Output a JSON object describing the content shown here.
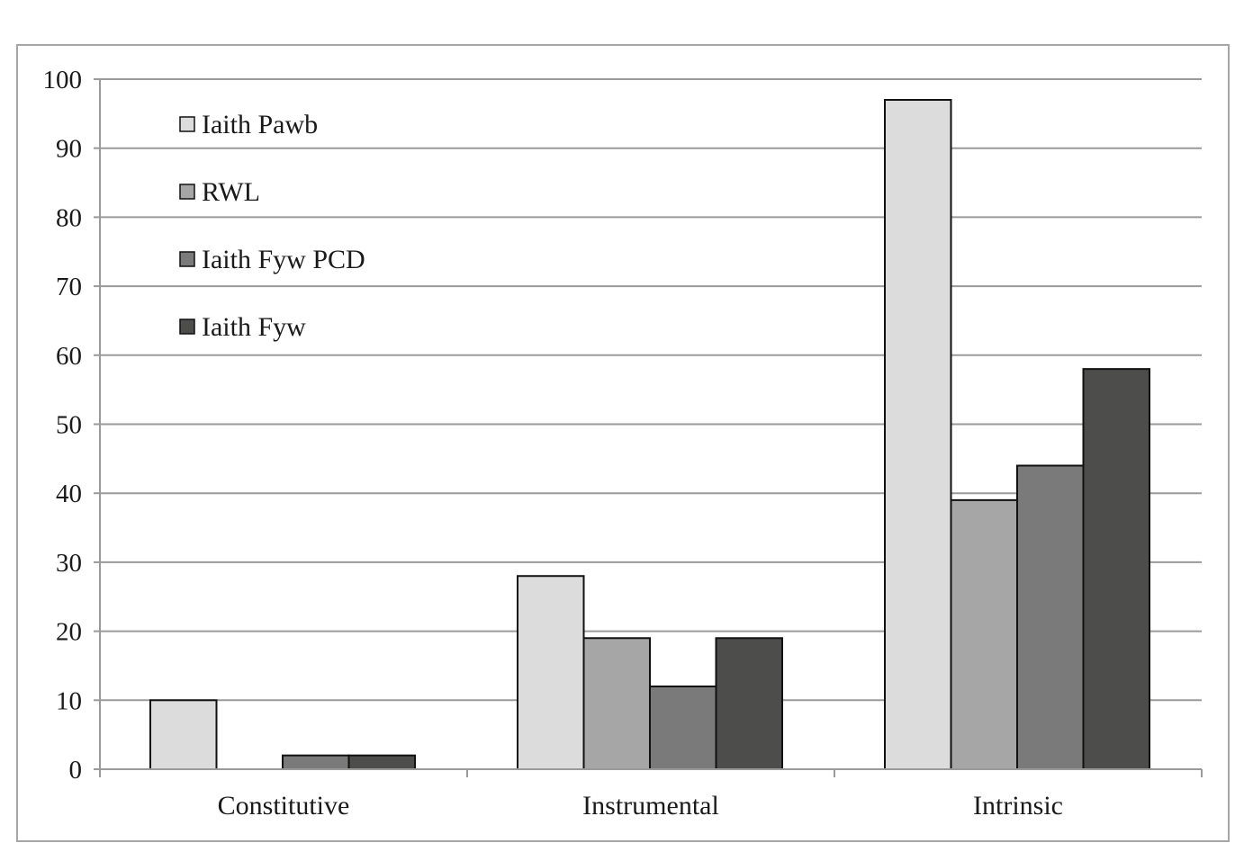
{
  "chart_data": {
    "type": "bar",
    "categories": [
      "Constitutive",
      "Instrumental",
      "Intrinsic"
    ],
    "series": [
      {
        "name": "Iaith Pawb",
        "values": [
          10,
          28,
          97
        ],
        "color": "#dcdcdc"
      },
      {
        "name": "RWL",
        "values": [
          0,
          19,
          39
        ],
        "color": "#a6a6a6"
      },
      {
        "name": "Iaith Fyw PCD",
        "values": [
          2,
          12,
          44
        ],
        "color": "#7a7a7a"
      },
      {
        "name": "Iaith Fyw",
        "values": [
          2,
          19,
          58
        ],
        "color": "#4d4d4b"
      }
    ],
    "yticks": [
      "0",
      "10",
      "20",
      "30",
      "40",
      "50",
      "60",
      "70",
      "80",
      "90",
      "100"
    ],
    "ylim": [
      0,
      100
    ],
    "title": "",
    "xlabel": "",
    "ylabel": "",
    "grid": true,
    "legend_position": "top-left"
  }
}
